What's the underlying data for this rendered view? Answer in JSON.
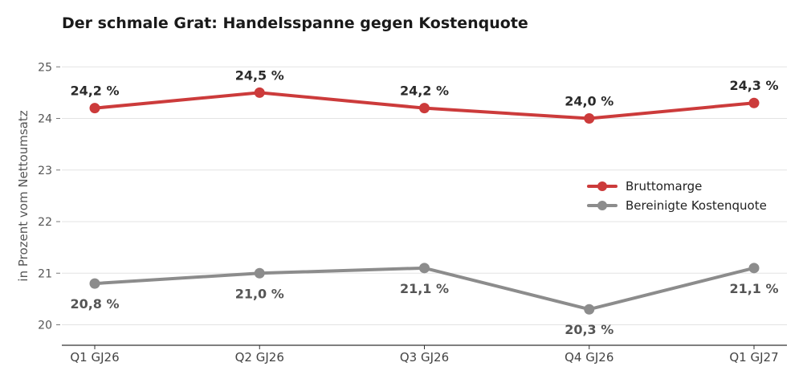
{
  "chart_data": {
    "type": "line",
    "title": "Der schmale Grat: Handelsspanne gegen Kostenquote",
    "xlabel": "",
    "ylabel": "in Prozent vom Nettoumsatz",
    "categories": [
      "Q1 GJ26",
      "Q2 GJ26",
      "Q3 GJ26",
      "Q4 GJ26",
      "Q1 GJ27"
    ],
    "ylim": [
      19.6,
      25.2
    ],
    "yticks": [
      20,
      21,
      22,
      23,
      24,
      25
    ],
    "grid": true,
    "legend_position": "right",
    "series": [
      {
        "name": "Bruttomarge",
        "color": "#cc3b3b",
        "values": [
          24.2,
          24.5,
          24.2,
          24.0,
          24.3
        ],
        "labels": [
          "24,2 %",
          "24,5 %",
          "24,2 %",
          "24,0 %",
          "24,3 %"
        ],
        "label_position": "above"
      },
      {
        "name": "Bereinigte Kostenquote",
        "color": "#8c8c8c",
        "values": [
          20.8,
          21.0,
          21.1,
          20.3,
          21.1
        ],
        "labels": [
          "20,8 %",
          "21,0 %",
          "21,1 %",
          "20,3 %",
          "21,1 %"
        ],
        "label_position": "below"
      }
    ]
  }
}
